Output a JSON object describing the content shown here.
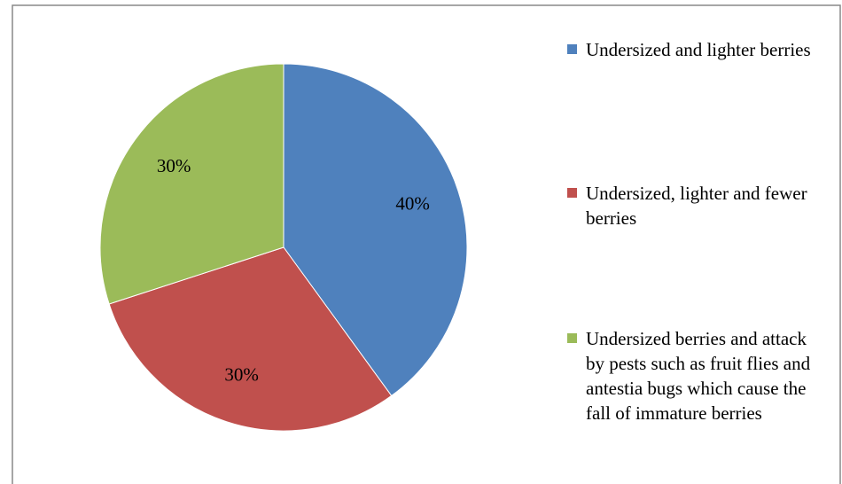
{
  "chart_data": {
    "type": "pie",
    "categories": [
      "Undersized and lighter berries",
      "Undersized, lighter and fewer berries",
      "Undersized berries and attack by pests such as fruit flies and antestia bugs which cause the fall of immature berries"
    ],
    "values": [
      40,
      30,
      30
    ],
    "value_labels": [
      "40%",
      "30%",
      "30%"
    ],
    "colors": [
      "#4f81bd",
      "#c0504d",
      "#9bbb59"
    ],
    "legend": "right"
  }
}
